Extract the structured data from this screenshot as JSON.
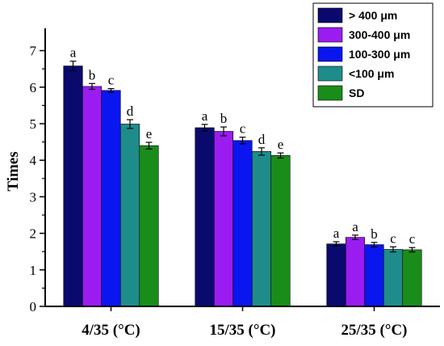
{
  "chart_data": {
    "type": "bar",
    "ylabel": "Times",
    "xlabel": "",
    "ylim": [
      0,
      7.5
    ],
    "yticks": [
      0,
      1,
      2,
      3,
      4,
      5,
      6,
      7
    ],
    "grid": false,
    "legend_position": "top-right",
    "categories": [
      "4/35 (°C)",
      "15/35 (°C)",
      "25/35 (°C)"
    ],
    "series": [
      {
        "name": "> 400 μm",
        "color": "#0a0a6e",
        "values": [
          6.58,
          4.89,
          1.71
        ],
        "errors": [
          0.13,
          0.09,
          0.06
        ],
        "labels": [
          "a",
          "a",
          "a"
        ]
      },
      {
        "name": "300-400 μm",
        "color": "#9a1cf0",
        "values": [
          6.02,
          4.79,
          1.89
        ],
        "errors": [
          0.08,
          0.12,
          0.06
        ],
        "labels": [
          "b",
          "b",
          "a"
        ]
      },
      {
        "name": "100-300 μm",
        "color": "#0a16f0",
        "values": [
          5.91,
          4.54,
          1.69
        ],
        "errors": [
          0.05,
          0.09,
          0.06
        ],
        "labels": [
          "c",
          "c",
          "b"
        ]
      },
      {
        "name": "<100 μm",
        "color": "#1f8c8c",
        "values": [
          4.99,
          4.24,
          1.56
        ],
        "errors": [
          0.12,
          0.1,
          0.07
        ],
        "labels": [
          "d",
          "d",
          "c"
        ]
      },
      {
        "name": "SD",
        "color": "#1a8c1a",
        "values": [
          4.4,
          4.13,
          1.55
        ],
        "errors": [
          0.09,
          0.07,
          0.06
        ],
        "labels": [
          "e",
          "e",
          "c"
        ]
      }
    ]
  }
}
